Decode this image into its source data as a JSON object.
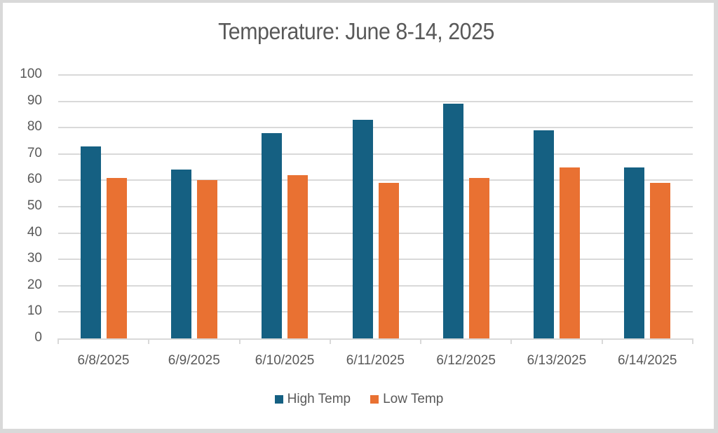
{
  "chart_data": {
    "type": "bar",
    "title": "Temperature:  June 8-14, 2025",
    "xlabel": "",
    "ylabel": "",
    "categories": [
      "6/8/2025",
      "6/9/2025",
      "6/10/2025",
      "6/11/2025",
      "6/12/2025",
      "6/13/2025",
      "6/14/2025"
    ],
    "series": [
      {
        "name": "High Temp",
        "color": "#156082",
        "values": [
          73,
          64,
          78,
          83,
          89,
          79,
          65
        ]
      },
      {
        "name": "Low Temp",
        "color": "#e97132",
        "values": [
          61,
          60,
          62,
          59,
          61,
          65,
          59
        ]
      }
    ],
    "ylim": [
      0,
      100
    ],
    "yticks": [
      0,
      10,
      20,
      30,
      40,
      50,
      60,
      70,
      80,
      90,
      100
    ],
    "grid": true,
    "legend_position": "bottom"
  },
  "legend": {
    "items": [
      {
        "label": "High Temp",
        "color": "#156082"
      },
      {
        "label": "Low Temp",
        "color": "#e97132"
      }
    ]
  }
}
